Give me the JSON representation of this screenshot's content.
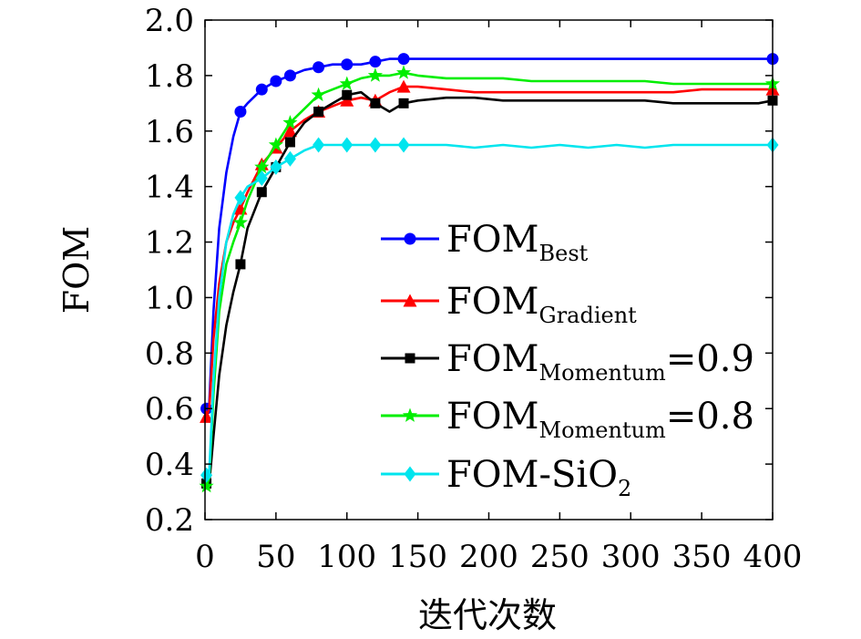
{
  "chart_data": {
    "type": "line",
    "xlabel": "迭代次数",
    "ylabel": "FOM",
    "xlim": [
      0,
      400
    ],
    "ylim": [
      0.2,
      2.0
    ],
    "xticks": [
      0,
      50,
      100,
      150,
      200,
      250,
      300,
      350,
      400
    ],
    "yticks": [
      0.2,
      0.4,
      0.6,
      0.8,
      1.0,
      1.2,
      1.4,
      1.6,
      1.8,
      2.0
    ],
    "ytick_labels": [
      "0.2",
      "0.4",
      "0.6",
      "0.8",
      "1.0",
      "1.2",
      "1.4",
      "1.6",
      "1.8",
      "2.0"
    ],
    "legend_position": "center-right",
    "grid": false,
    "series": [
      {
        "name": "FOM_Best",
        "legend_main": "FOM",
        "legend_sub": "Best",
        "legend_suffix": "",
        "color": "#0000ff",
        "marker": "circle",
        "x": [
          1,
          3,
          6,
          10,
          15,
          20,
          25,
          30,
          40,
          50,
          60,
          70,
          80,
          90,
          100,
          110,
          120,
          130,
          140,
          150,
          170,
          190,
          210,
          230,
          250,
          270,
          290,
          310,
          330,
          350,
          370,
          390,
          400
        ],
        "y": [
          0.6,
          0.62,
          0.95,
          1.25,
          1.45,
          1.58,
          1.67,
          1.7,
          1.75,
          1.78,
          1.8,
          1.82,
          1.83,
          1.84,
          1.84,
          1.84,
          1.85,
          1.86,
          1.86,
          1.86,
          1.86,
          1.86,
          1.86,
          1.86,
          1.86,
          1.86,
          1.86,
          1.86,
          1.86,
          1.86,
          1.86,
          1.86,
          1.86
        ]
      },
      {
        "name": "FOM_Gradient",
        "legend_main": "FOM",
        "legend_sub": "Gradient",
        "legend_suffix": "",
        "color": "#ff0000",
        "marker": "triangle",
        "x": [
          1,
          3,
          6,
          10,
          15,
          20,
          25,
          30,
          40,
          50,
          60,
          70,
          80,
          90,
          100,
          110,
          120,
          130,
          140,
          150,
          170,
          190,
          210,
          230,
          250,
          270,
          290,
          310,
          330,
          350,
          370,
          390,
          400
        ],
        "y": [
          0.57,
          0.6,
          0.85,
          1.05,
          1.2,
          1.27,
          1.32,
          1.38,
          1.48,
          1.54,
          1.6,
          1.64,
          1.67,
          1.69,
          1.71,
          1.72,
          1.71,
          1.74,
          1.76,
          1.76,
          1.75,
          1.74,
          1.74,
          1.74,
          1.74,
          1.74,
          1.74,
          1.74,
          1.74,
          1.75,
          1.75,
          1.75,
          1.75
        ]
      },
      {
        "name": "FOM_Momentum=0.9",
        "legend_main": "FOM",
        "legend_sub": "Momentum",
        "legend_suffix": "=0.9",
        "color": "#000000",
        "marker": "square",
        "x": [
          1,
          3,
          6,
          10,
          15,
          20,
          25,
          30,
          40,
          50,
          60,
          70,
          80,
          90,
          100,
          110,
          120,
          130,
          140,
          150,
          170,
          190,
          210,
          230,
          250,
          270,
          290,
          310,
          330,
          350,
          370,
          390,
          400
        ],
        "y": [
          0.33,
          0.33,
          0.5,
          0.72,
          0.9,
          1.02,
          1.12,
          1.25,
          1.38,
          1.47,
          1.56,
          1.63,
          1.67,
          1.7,
          1.73,
          1.74,
          1.7,
          1.67,
          1.7,
          1.71,
          1.72,
          1.72,
          1.71,
          1.71,
          1.71,
          1.71,
          1.71,
          1.71,
          1.7,
          1.7,
          1.7,
          1.7,
          1.71
        ]
      },
      {
        "name": "FOM_Momentum=0.8",
        "legend_main": "FOM",
        "legend_sub": "Momentum",
        "legend_suffix": "=0.8",
        "color": "#00ee00",
        "marker": "star",
        "x": [
          1,
          3,
          6,
          10,
          15,
          20,
          25,
          30,
          40,
          50,
          60,
          70,
          80,
          90,
          100,
          110,
          120,
          130,
          140,
          150,
          170,
          190,
          210,
          230,
          250,
          270,
          290,
          310,
          330,
          350,
          370,
          390,
          400
        ],
        "y": [
          0.32,
          0.35,
          0.65,
          0.95,
          1.12,
          1.2,
          1.27,
          1.35,
          1.47,
          1.55,
          1.63,
          1.68,
          1.73,
          1.75,
          1.77,
          1.79,
          1.8,
          1.8,
          1.81,
          1.8,
          1.79,
          1.79,
          1.79,
          1.78,
          1.78,
          1.78,
          1.78,
          1.78,
          1.77,
          1.77,
          1.77,
          1.77,
          1.77
        ]
      },
      {
        "name": "FOM-SiO2",
        "legend_main": "FOM-SiO",
        "legend_sub": "2",
        "legend_suffix": "",
        "color": "#00e5ee",
        "marker": "diamond",
        "x": [
          1,
          3,
          6,
          10,
          15,
          20,
          25,
          30,
          40,
          50,
          60,
          70,
          80,
          90,
          100,
          110,
          120,
          130,
          140,
          150,
          170,
          190,
          210,
          230,
          250,
          270,
          290,
          310,
          330,
          350,
          370,
          390,
          400
        ],
        "y": [
          0.36,
          0.37,
          0.7,
          1.0,
          1.2,
          1.3,
          1.36,
          1.4,
          1.43,
          1.47,
          1.5,
          1.53,
          1.55,
          1.55,
          1.55,
          1.55,
          1.55,
          1.55,
          1.55,
          1.55,
          1.55,
          1.54,
          1.55,
          1.54,
          1.55,
          1.54,
          1.55,
          1.54,
          1.55,
          1.55,
          1.55,
          1.55,
          1.55
        ]
      }
    ]
  }
}
